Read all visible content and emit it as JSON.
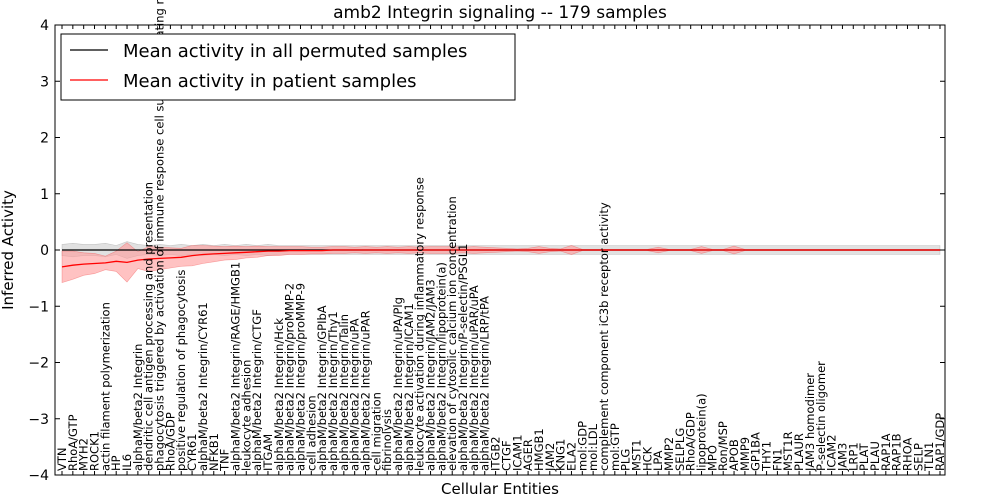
{
  "chart_data": {
    "type": "line",
    "title": "amb2 Integrin signaling -- 179 samples",
    "xlabel": "Cellular Entities",
    "ylabel": "Inferred Activity",
    "ylim": [
      -4,
      4
    ],
    "yticks": [
      -4,
      -3,
      -2,
      -1,
      0,
      1,
      2,
      3,
      4
    ],
    "ytick_labels": [
      "−4",
      "−3",
      "−2",
      "−1",
      "0",
      "1",
      "2",
      "3",
      "4"
    ],
    "grid": false,
    "legend_position": "top-left",
    "categories": [
      "VTN",
      "RhoA/GTP",
      "MYH2",
      "ROCK1",
      "actin filament polymerization",
      "HP",
      "IL6",
      "alphaM/beta2 Integrin",
      "dendritic cell antigen processing and presentation",
      "phagocytosis triggered by activation of immune response cell surface activating receptor",
      "RhoA/GDP",
      "positive regulation of phagocytosis",
      "CYR61",
      "alphaM/beta2 Integrin/CYR61",
      "NFKB1",
      "TNF",
      "alphaM/beta2 Integrin/RAGE/HMGB1",
      "leukocyte adhesion",
      "alphaM/beta2 Integrin/CTGF",
      "ITGAM",
      "alphaM/beta2 Integrin/Hck",
      "alphaM/beta2 Integrin/proMMP-2",
      "alphaM/beta2 Integrin/proMMP-9",
      "cell adhesion",
      "alphaM/beta2 Integrin/GPIbA",
      "alphaM/beta2 Integrin/Thy1",
      "alphaM/beta2 Integrin/Talin",
      "alphaM/beta2 Integrin/uPA",
      "alphaM/beta2 Integrin/uPAR",
      "cell migration",
      "fibrinolysis",
      "alphaM/beta2 Integrin/uPA/Plg",
      "alphaM/beta2 Integrin/ICAM1",
      "leukocyte activation during inflammatory response",
      "alphaM/beta2 Integrin/JAM2/JAM3",
      "alphaM/beta2 Integrin/lipoprotein(a)",
      "elevation of cytosolic calcium ion concentration",
      "alphaM/beta2 Integrin/P-selectin/PSGL1",
      "alphaM/beta2 Integrin/uPAR/uPA",
      "alphaM/beta2 Integrin/LRP/tPA",
      "ITGB2",
      "CTGF",
      "ICAM1",
      "AGER",
      "HMGB1",
      "JAM2",
      "KNG1",
      "ELA2",
      "mol:GDP",
      "mol:LDL",
      "complement component iC3b receptor activity",
      "mol:GTP",
      "PLG",
      "MST1",
      "HCK",
      "LPA",
      "MMP2",
      "SELPLG",
      "RhoA/GDP",
      "lipoprotein(a)",
      "MPO",
      "Ron/MSP",
      "APOB",
      "MMP9",
      "GP1BA",
      "THY1",
      "FN1",
      "MST1R",
      "PLAUR",
      "JAM3 homodimer",
      "P-selectin oligomer",
      "ICAM2",
      "JAM3",
      "LRP1",
      "PLAT",
      "PLAU",
      "RAP1A",
      "RAP1B",
      "RHOA",
      "SELP",
      "TLN1",
      "RAP1/GDP"
    ],
    "series": [
      {
        "name": "Mean activity in all permuted samples",
        "color": "#000000",
        "band_color": "#c8c8c8",
        "mean": [
          0,
          0,
          0,
          0,
          0,
          0,
          0,
          0,
          0,
          0,
          0,
          0,
          0,
          0,
          0,
          0,
          0,
          0,
          0,
          0,
          0,
          0,
          0,
          0,
          0,
          0,
          0,
          0,
          0,
          0,
          0,
          0,
          0,
          0,
          0,
          0,
          0,
          0,
          0,
          0,
          0,
          0,
          0,
          0,
          0,
          0,
          0,
          0,
          0,
          0,
          0,
          0,
          0,
          0,
          0,
          0,
          0,
          0,
          0,
          0,
          0,
          0,
          0,
          0,
          0,
          0,
          0,
          0,
          0,
          0,
          0,
          0,
          0,
          0,
          0,
          0,
          0,
          0,
          0,
          0,
          0,
          0
        ],
        "spread": [
          0.1,
          0.12,
          0.1,
          0.1,
          0.12,
          0.08,
          0.15,
          0.1,
          0.08,
          0.1,
          0.08,
          0.1,
          0.08,
          0.1,
          0.08,
          0.1,
          0.08,
          0.1,
          0.08,
          0.1,
          0.08,
          0.08,
          0.08,
          0.08,
          0.08,
          0.08,
          0.08,
          0.08,
          0.08,
          0.08,
          0.08,
          0.08,
          0.08,
          0.08,
          0.08,
          0.08,
          0.08,
          0.08,
          0.08,
          0.08,
          0.08,
          0.08,
          0.08,
          0.08,
          0.08,
          0.08,
          0.08,
          0.08,
          0.08,
          0.08,
          0.08,
          0.08,
          0.08,
          0.08,
          0.08,
          0.08,
          0.08,
          0.08,
          0.08,
          0.08,
          0.08,
          0.08,
          0.08,
          0.08,
          0.08,
          0.08,
          0.08,
          0.08,
          0.08,
          0.08,
          0.08,
          0.08,
          0.08,
          0.08,
          0.08,
          0.08,
          0.08,
          0.08,
          0.08,
          0.08,
          0.08,
          0.08
        ]
      },
      {
        "name": "Mean activity in patient samples",
        "color": "#ff0000",
        "band_color": "#ff9999",
        "mean": [
          -0.3,
          -0.27,
          -0.25,
          -0.24,
          -0.23,
          -0.2,
          -0.22,
          -0.18,
          -0.16,
          -0.15,
          -0.14,
          -0.13,
          -0.1,
          -0.08,
          -0.07,
          -0.06,
          -0.05,
          -0.04,
          -0.03,
          -0.02,
          -0.02,
          -0.01,
          -0.01,
          -0.01,
          -0.01,
          0,
          0,
          0,
          0,
          0,
          0,
          0,
          0,
          0,
          0,
          0,
          0,
          0,
          0,
          0,
          0,
          0,
          0,
          0,
          0,
          0,
          0,
          0,
          0,
          0,
          0,
          0,
          0,
          0,
          0,
          0,
          0,
          0,
          0,
          0,
          0,
          0,
          0,
          0,
          0,
          0,
          0,
          0,
          0,
          0,
          0,
          0,
          0,
          0,
          0,
          0,
          0,
          0,
          0,
          0,
          0,
          0
        ],
        "spread": [
          0.28,
          0.25,
          0.2,
          0.18,
          0.12,
          0.18,
          0.35,
          0.15,
          0.22,
          0.2,
          0.18,
          0.16,
          0.18,
          0.16,
          0.14,
          0.12,
          0.12,
          0.1,
          0.1,
          0.08,
          0.08,
          0.07,
          0.07,
          0.06,
          0.06,
          0.06,
          0.06,
          0.05,
          0.06,
          0.05,
          0.06,
          0.05,
          0.06,
          0.05,
          0.06,
          0.06,
          0.06,
          0.05,
          0.06,
          0.05,
          0.04,
          0.03,
          0.02,
          0.03,
          0.06,
          0.03,
          0.02,
          0.08,
          0.01,
          0.01,
          0.01,
          0.01,
          0.01,
          0.01,
          0.01,
          0.05,
          0.01,
          0.01,
          0.01,
          0.06,
          0.01,
          0.01,
          0.07,
          0.01,
          0.01,
          0.01,
          0.01,
          0.01,
          0.01,
          0.01,
          0.01,
          0.01,
          0.01,
          0.01,
          0.01,
          0.01,
          0.01,
          0.01,
          0.01,
          0.01,
          0.01,
          0.01
        ]
      }
    ]
  }
}
